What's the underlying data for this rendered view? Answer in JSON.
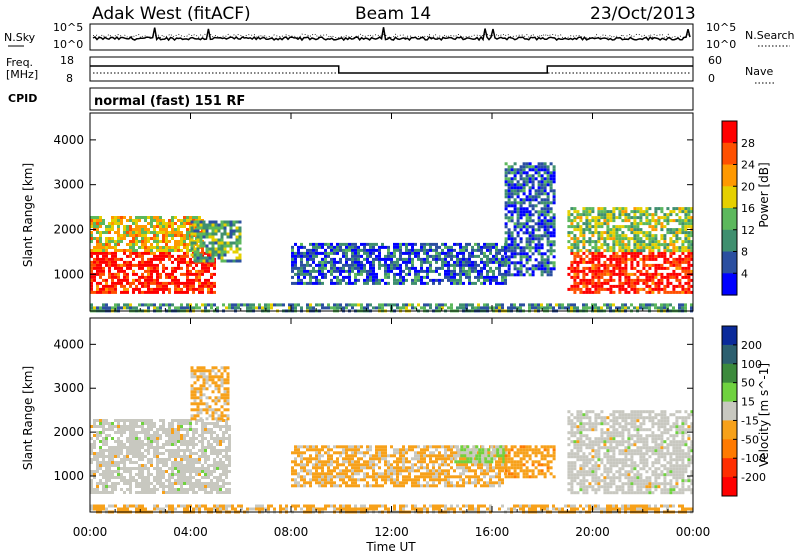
{
  "header": {
    "station": "Adak West (fitACF)",
    "beam": "Beam 14",
    "date": "23/Oct/2013"
  },
  "noise_panel": {
    "left_label": "N.Sky",
    "right_label": "N.Search",
    "left_ticks": [
      "10^5",
      "10^0"
    ],
    "right_ticks": [
      "10^5",
      "10^0"
    ]
  },
  "freq_panel": {
    "left_label_line1": "Freq.",
    "left_label_line2": "[MHz]",
    "right_label": "Nave",
    "left_ticks": [
      "18",
      "8"
    ],
    "right_ticks": [
      "60",
      "0"
    ],
    "frequency_steps": [
      {
        "from_h": 0,
        "to_h": 9.9,
        "value": "high"
      },
      {
        "from_h": 9.9,
        "to_h": 18.2,
        "value": "low"
      },
      {
        "from_h": 18.2,
        "to_h": 24,
        "value": "high"
      }
    ]
  },
  "cpid": {
    "label": "CPID",
    "mode": "normal (fast) 151 RF"
  },
  "x_axis": {
    "label": "Time UT",
    "ticks": [
      "00:00",
      "04:00",
      "08:00",
      "12:00",
      "16:00",
      "20:00",
      "00:00"
    ],
    "range_h": [
      0,
      24
    ]
  },
  "power_panel": {
    "ylabel": "Slant Range [km]",
    "yticks": [
      "1000",
      "2000",
      "3000",
      "4000"
    ],
    "colorbar_label": "Power [dB]",
    "colorbar_ticks": [
      "4",
      "8",
      "12",
      "16",
      "20",
      "24",
      "28"
    ],
    "colors": [
      "#0000ff",
      "#2b4fa0",
      "#3f8f6f",
      "#5cb85c",
      "#e5d000",
      "#ff9900",
      "#ff5000",
      "#ff0000"
    ]
  },
  "velocity_panel": {
    "ylabel": "Slant Range [km]",
    "yticks": [
      "1000",
      "2000",
      "3000",
      "4000"
    ],
    "colorbar_label": "Velocity [m s^-1]",
    "colorbar_ticks": [
      "200",
      "100",
      "50",
      "15",
      "-15",
      "-50",
      "-100",
      "-200"
    ],
    "colors": [
      "#0a2a9a",
      "#2c5f6f",
      "#3c8a3c",
      "#6fd23f",
      "#c8c8c0",
      "#f7a11a",
      "#ff7a00",
      "#ff2e00",
      "#ff0000"
    ]
  },
  "chart_data": [
    {
      "type": "heatmap",
      "title": "Adak West (fitACF) Beam 14 23/Oct/2013",
      "xlabel": "Time UT",
      "ylabel": "Slant Range [km]",
      "xlim": [
        "00:00",
        "24:00"
      ],
      "ylim": [
        180,
        4600
      ],
      "colorbar": "Power [dB]",
      "colorbar_range": [
        0,
        30
      ],
      "regions": [
        {
          "t_from": 0,
          "t_to": 5.0,
          "r_from": 600,
          "r_to": 1500,
          "value_db": 28
        },
        {
          "t_from": 0,
          "t_to": 4.5,
          "r_from": 1500,
          "r_to": 2300,
          "value_db": 18
        },
        {
          "t_from": 4.0,
          "t_to": 6.0,
          "r_from": 1300,
          "r_to": 2200,
          "value_db": 12
        },
        {
          "t_from": 8.0,
          "t_to": 16.5,
          "r_from": 800,
          "r_to": 1700,
          "value_db": 6
        },
        {
          "t_from": 16.5,
          "t_to": 18.5,
          "r_from": 1000,
          "r_to": 3500,
          "value_db": 6
        },
        {
          "t_from": 19.0,
          "t_to": 24,
          "r_from": 600,
          "r_to": 1500,
          "value_db": 28
        },
        {
          "t_from": 19.0,
          "t_to": 24,
          "r_from": 1500,
          "r_to": 2500,
          "value_db": 14
        },
        {
          "t_from": 0,
          "t_to": 24,
          "r_from": 180,
          "r_to": 350,
          "value_db": 10
        }
      ]
    },
    {
      "type": "heatmap",
      "title": "",
      "xlabel": "Time UT",
      "ylabel": "Slant Range [km]",
      "xlim": [
        "00:00",
        "24:00"
      ],
      "ylim": [
        180,
        4600
      ],
      "colorbar": "Velocity [m s^-1]",
      "colorbar_range": [
        -250,
        250
      ],
      "regions": [
        {
          "t_from": 0,
          "t_to": 5.5,
          "r_from": 600,
          "r_to": 2300,
          "value_ms": 0
        },
        {
          "t_from": 4.0,
          "t_to": 5.5,
          "r_from": 2300,
          "r_to": 3500,
          "value_ms": -40
        },
        {
          "t_from": 8.0,
          "t_to": 16.5,
          "r_from": 800,
          "r_to": 1700,
          "value_ms": -40
        },
        {
          "t_from": 14.5,
          "t_to": 16.5,
          "r_from": 1300,
          "r_to": 1700,
          "value_ms": 30
        },
        {
          "t_from": 16.5,
          "t_to": 18.5,
          "r_from": 1000,
          "r_to": 1700,
          "value_ms": -60
        },
        {
          "t_from": 19.0,
          "t_to": 24,
          "r_from": 600,
          "r_to": 2500,
          "value_ms": 0
        },
        {
          "t_from": 0,
          "t_to": 24,
          "r_from": 180,
          "r_to": 350,
          "value_ms": -40
        }
      ]
    }
  ]
}
